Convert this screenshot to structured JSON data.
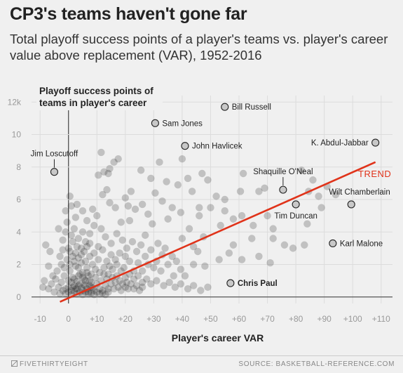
{
  "header": {
    "title": "CP3's teams haven't gone far",
    "subtitle": "Total playoff success points of a player's teams vs. player's career value above replacement (VAR), 1952-2016"
  },
  "footer": {
    "brand": "FIVETHIRTYEIGHT",
    "brand_icon": "fivethirtyeight-logo-icon",
    "source": "SOURCE: BASKETBALL-REFERENCE.COM"
  },
  "colors": {
    "trend": "#e0331a",
    "points": "#1a1a1a",
    "highlight_fill": "#c8c8c8",
    "grid": "#dcdcdc"
  },
  "chart_data": {
    "type": "scatter",
    "title": "CP3's teams haven't gone far",
    "subtitle": "Total playoff success points of a player's teams vs. player's career value above replacement (VAR), 1952-2016",
    "xlabel": "Player's career VAR",
    "ylabel": "Playoff success points of teams in player's career",
    "ylabel_lines": [
      "Playoff success points of",
      "teams in player's career"
    ],
    "xlim": [
      -13,
      114
    ],
    "ylim": [
      -0.4,
      12.4
    ],
    "x_ticks": [
      -10,
      0,
      10,
      20,
      30,
      40,
      50,
      60,
      70,
      80,
      90,
      100,
      110
    ],
    "x_tick_labels": [
      "-10",
      "0",
      "+10",
      "+20",
      "+30",
      "+40",
      "+50",
      "+60",
      "+70",
      "+80",
      "+90",
      "+100",
      "+110"
    ],
    "y_ticks": [
      0,
      2,
      4,
      6,
      8,
      10,
      12
    ],
    "y_tick_labels": [
      "0",
      "2",
      "4",
      "6",
      "8",
      "10",
      "12k"
    ],
    "grid": true,
    "trend": {
      "label": "TREND",
      "x": [
        -3,
        108
      ],
      "y": [
        -0.3,
        8.3
      ]
    },
    "labeled_points": [
      {
        "name": "Bill Russell",
        "x": 55,
        "y": 11.7,
        "label_side": "right",
        "bold": false
      },
      {
        "name": "Sam Jones",
        "x": 30.5,
        "y": 10.7,
        "label_side": "right",
        "bold": false
      },
      {
        "name": "John Havlicek",
        "x": 41,
        "y": 9.3,
        "label_side": "right",
        "bold": false
      },
      {
        "name": "K. Abdul-Jabbar",
        "x": 108,
        "y": 9.5,
        "label_side": "left",
        "bold": false
      },
      {
        "name": "Jim Loscutoff",
        "x": -5,
        "y": 7.7,
        "label_side": "above",
        "bold": false
      },
      {
        "name": "Shaquille O'Neal",
        "x": 75.5,
        "y": 6.6,
        "label_side": "above",
        "bold": false
      },
      {
        "name": "Wilt Chamberlain",
        "x": 99.5,
        "y": 5.7,
        "label_side": "above-right",
        "bold": false
      },
      {
        "name": "Tim Duncan",
        "x": 80,
        "y": 5.7,
        "label_side": "below",
        "bold": false
      },
      {
        "name": "Karl Malone",
        "x": 93,
        "y": 3.3,
        "label_side": "right",
        "bold": false
      },
      {
        "name": "Chris Paul",
        "x": 57,
        "y": 0.85,
        "label_side": "right",
        "bold": true
      }
    ],
    "other_points": [
      [
        40,
        8.5
      ],
      [
        32,
        8.3
      ],
      [
        17.5,
        8.5
      ],
      [
        16,
        8.3
      ],
      [
        14.5,
        7.9
      ],
      [
        11.5,
        8.9
      ],
      [
        12.5,
        7.7
      ],
      [
        14,
        7.6
      ],
      [
        10.5,
        7.5
      ],
      [
        25.5,
        7.8
      ],
      [
        29,
        7.3
      ],
      [
        34.5,
        7.1
      ],
      [
        42,
        7.3
      ],
      [
        38.5,
        6.9
      ],
      [
        47,
        7.6
      ],
      [
        49,
        7.2
      ],
      [
        61.5,
        7.6
      ],
      [
        52,
        6.2
      ],
      [
        30.5,
        6.4
      ],
      [
        33,
        5.9
      ],
      [
        22,
        6.5
      ],
      [
        13.5,
        6.6
      ],
      [
        12,
        6.3
      ],
      [
        14.5,
        5.8
      ],
      [
        20,
        6.1
      ],
      [
        16.5,
        5.5
      ],
      [
        26,
        5.7
      ],
      [
        28,
        5.1
      ],
      [
        36.5,
        5.5
      ],
      [
        39.5,
        5.2
      ],
      [
        35,
        4.8
      ],
      [
        29.5,
        4.5
      ],
      [
        21.5,
        4.7
      ],
      [
        23.5,
        5.4
      ],
      [
        21,
        5.6
      ],
      [
        46,
        5.5
      ],
      [
        50,
        5.5
      ],
      [
        55,
        5.3
      ],
      [
        58,
        4.8
      ],
      [
        61,
        5.0
      ],
      [
        65,
        4.4
      ],
      [
        70,
        5.0
      ],
      [
        72,
        4.2
      ],
      [
        76,
        3.2
      ],
      [
        79,
        3.0
      ],
      [
        83,
        3.2
      ],
      [
        84,
        4.5
      ],
      [
        72,
        3.6
      ],
      [
        64.5,
        3.6
      ],
      [
        58,
        3.2
      ],
      [
        56.5,
        2.7
      ],
      [
        61,
        2.3
      ],
      [
        53,
        2.3
      ],
      [
        48,
        1.9
      ],
      [
        44,
        2.0
      ],
      [
        37,
        1.3
      ],
      [
        71,
        2.1
      ],
      [
        67,
        2.5
      ],
      [
        46,
        5.0
      ],
      [
        42.5,
        4.2
      ],
      [
        47.5,
        3.7
      ],
      [
        44,
        3.1
      ],
      [
        40,
        3.6
      ],
      [
        53.5,
        4.4
      ],
      [
        67,
        6.5
      ],
      [
        84.5,
        6.5
      ],
      [
        88,
        6.2
      ],
      [
        91,
        6.8
      ],
      [
        94,
        6.3
      ],
      [
        89,
        5.5
      ],
      [
        82,
        7.8
      ],
      [
        86,
        7.2
      ],
      [
        60.5,
        6.5
      ],
      [
        69,
        6.7
      ],
      [
        55,
        6.0
      ],
      [
        43.5,
        6.5
      ],
      [
        45.5,
        2.8
      ],
      [
        31.5,
        3.3
      ],
      [
        27,
        3.8
      ],
      [
        -2,
        3.5
      ],
      [
        -0.5,
        4.6
      ],
      [
        -1,
        5.3
      ],
      [
        1,
        5.6
      ],
      [
        2.5,
        4.9
      ],
      [
        -3.5,
        4.2
      ],
      [
        -8,
        3.2
      ],
      [
        -6.5,
        2.8
      ],
      [
        -3,
        2.5
      ],
      [
        -7,
        1.9
      ],
      [
        -5.5,
        1.3
      ],
      [
        -4,
        1.6
      ],
      [
        -2.5,
        2.0
      ],
      [
        0.5,
        6.2
      ],
      [
        3,
        5.7
      ],
      [
        5,
        5.3
      ],
      [
        6.5,
        4.7
      ],
      [
        8.5,
        5.4
      ],
      [
        10,
        5.0
      ],
      [
        9,
        4.4
      ],
      [
        7.5,
        3.9
      ],
      [
        6,
        3.4
      ],
      [
        11.5,
        4.2
      ],
      [
        13,
        3.7
      ],
      [
        15,
        3.3
      ],
      [
        17,
        3.9
      ],
      [
        18.5,
        4.6
      ],
      [
        19,
        3.5
      ],
      [
        20.5,
        3.0
      ],
      [
        22.5,
        3.4
      ],
      [
        24,
        2.8
      ],
      [
        25.5,
        3.2
      ],
      [
        27,
        2.5
      ],
      [
        29,
        2.9
      ],
      [
        31,
        2.2
      ],
      [
        33,
        2.6
      ],
      [
        35,
        2.0
      ],
      [
        34,
        3.0
      ],
      [
        36.5,
        2.5
      ],
      [
        38,
        2.2
      ],
      [
        39.5,
        1.7
      ],
      [
        41,
        1.3
      ],
      [
        32.5,
        1.6
      ],
      [
        30,
        1.8
      ],
      [
        28,
        2.0
      ],
      [
        26,
        1.6
      ],
      [
        24.5,
        2.1
      ],
      [
        23,
        1.6
      ],
      [
        21.5,
        2.2
      ],
      [
        20,
        2.5
      ],
      [
        18,
        2.7
      ],
      [
        16.5,
        2.3
      ],
      [
        15,
        2.6
      ],
      [
        13.5,
        2.2
      ],
      [
        12,
        2.9
      ],
      [
        10.5,
        3.1
      ],
      [
        9,
        2.7
      ],
      [
        7.5,
        2.5
      ],
      [
        6,
        2.2
      ],
      [
        4.5,
        2.6
      ],
      [
        3,
        3.1
      ],
      [
        1.5,
        3.4
      ],
      [
        0.5,
        2.8
      ],
      [
        2,
        2.2
      ],
      [
        3.5,
        1.8
      ],
      [
        5,
        1.5
      ],
      [
        6.5,
        1.8
      ],
      [
        8,
        1.4
      ],
      [
        9.5,
        1.7
      ],
      [
        11,
        1.5
      ],
      [
        12.5,
        1.8
      ],
      [
        14,
        1.4
      ],
      [
        15.5,
        1.7
      ],
      [
        17,
        1.3
      ],
      [
        18.5,
        1.6
      ],
      [
        20,
        1.2
      ],
      [
        21.5,
        1.4
      ],
      [
        23,
        1.1
      ],
      [
        24.5,
        1.3
      ],
      [
        26,
        0.9
      ],
      [
        27.5,
        1.1
      ],
      [
        29,
        0.8
      ],
      [
        31,
        1.0
      ],
      [
        33.5,
        0.7
      ],
      [
        35.5,
        0.9
      ],
      [
        37.5,
        0.6
      ],
      [
        39.5,
        0.8
      ],
      [
        42,
        0.5
      ],
      [
        44,
        0.7
      ],
      [
        46.5,
        0.4
      ],
      [
        49,
        0.6
      ],
      [
        -9,
        0.6
      ],
      [
        -8.5,
        1.0
      ],
      [
        -7,
        0.5
      ],
      [
        -6,
        0.8
      ],
      [
        -5,
        0.3
      ],
      [
        -4.5,
        1.1
      ],
      [
        -3.5,
        0.6
      ],
      [
        -2.5,
        0.9
      ],
      [
        -1.5,
        1.3
      ],
      [
        -1,
        0.5
      ],
      [
        0,
        1.0
      ],
      [
        0.5,
        1.6
      ],
      [
        1,
        0.4
      ],
      [
        1.5,
        1.2
      ],
      [
        2,
        0.7
      ],
      [
        2.5,
        1.9
      ],
      [
        3,
        0.5
      ],
      [
        3.5,
        1.3
      ],
      [
        4,
        0.8
      ],
      [
        4.5,
        2.1
      ],
      [
        5,
        0.4
      ],
      [
        5.5,
        1.1
      ],
      [
        6,
        0.7
      ],
      [
        6.5,
        1.5
      ],
      [
        7,
        0.3
      ],
      [
        7.5,
        1.0
      ],
      [
        8,
        0.6
      ],
      [
        8.5,
        2.0
      ],
      [
        9,
        0.4
      ],
      [
        9.5,
        1.2
      ],
      [
        10,
        0.8
      ],
      [
        10.5,
        2.3
      ],
      [
        11,
        0.5
      ],
      [
        11.5,
        1.0
      ],
      [
        12,
        0.4
      ],
      [
        12.5,
        1.4
      ],
      [
        13,
        0.7
      ],
      [
        13.5,
        1.1
      ],
      [
        14,
        0.5
      ],
      [
        14.5,
        1.9
      ],
      [
        15,
        0.8
      ],
      [
        15.5,
        1.2
      ],
      [
        16,
        0.5
      ],
      [
        16.5,
        0.9
      ],
      [
        17,
        2.0
      ],
      [
        17.5,
        0.6
      ],
      [
        18,
        1.0
      ],
      [
        18.5,
        0.4
      ],
      [
        19,
        0.8
      ],
      [
        19.5,
        1.8
      ],
      [
        20,
        0.6
      ],
      [
        20.5,
        0.9
      ],
      [
        21,
        0.5
      ],
      [
        22,
        0.8
      ],
      [
        23,
        0.5
      ],
      [
        24,
        0.7
      ],
      [
        25,
        0.4
      ],
      [
        26,
        0.6
      ],
      [
        -3,
        0.2
      ],
      [
        -2,
        0.4
      ],
      [
        -1,
        0.2
      ],
      [
        0,
        0.3
      ],
      [
        1,
        0.15
      ],
      [
        2,
        0.35
      ],
      [
        3,
        0.2
      ],
      [
        4,
        0.3
      ],
      [
        5,
        0.15
      ],
      [
        6,
        0.3
      ],
      [
        7,
        0.2
      ],
      [
        8,
        0.25
      ],
      [
        9,
        0.15
      ],
      [
        10,
        0.3
      ],
      [
        11,
        0.2
      ],
      [
        12,
        0.25
      ],
      [
        13,
        0.15
      ],
      [
        14,
        0.3
      ],
      [
        0,
        0.6
      ],
      [
        1,
        0.9
      ],
      [
        2,
        1.1
      ],
      [
        3,
        0.95
      ],
      [
        4,
        1.4
      ],
      [
        5,
        1.2
      ],
      [
        6,
        1.0
      ],
      [
        7,
        1.3
      ],
      [
        8,
        0.9
      ],
      [
        0.5,
        2.0
      ],
      [
        1.5,
        2.5
      ],
      [
        2.5,
        2.7
      ],
      [
        3.5,
        2.4
      ],
      [
        4.5,
        3.0
      ],
      [
        5.5,
        2.8
      ],
      [
        6.5,
        3.1
      ],
      [
        7.5,
        3.3
      ],
      [
        -1.5,
        1.8
      ],
      [
        -0.5,
        2.3
      ],
      [
        0,
        3.0
      ],
      [
        1,
        3.8
      ],
      [
        2,
        4.2
      ],
      [
        3.5,
        3.6
      ],
      [
        5,
        4.0
      ],
      [
        -2,
        2.9
      ],
      [
        -1,
        4.0
      ],
      [
        1.5,
        0.6
      ],
      [
        2.5,
        0.5
      ],
      [
        3.5,
        0.7
      ],
      [
        4.5,
        0.55
      ],
      [
        5.5,
        0.75
      ],
      [
        6.5,
        0.5
      ],
      [
        7.5,
        0.7
      ],
      [
        8.5,
        0.55
      ]
    ]
  }
}
